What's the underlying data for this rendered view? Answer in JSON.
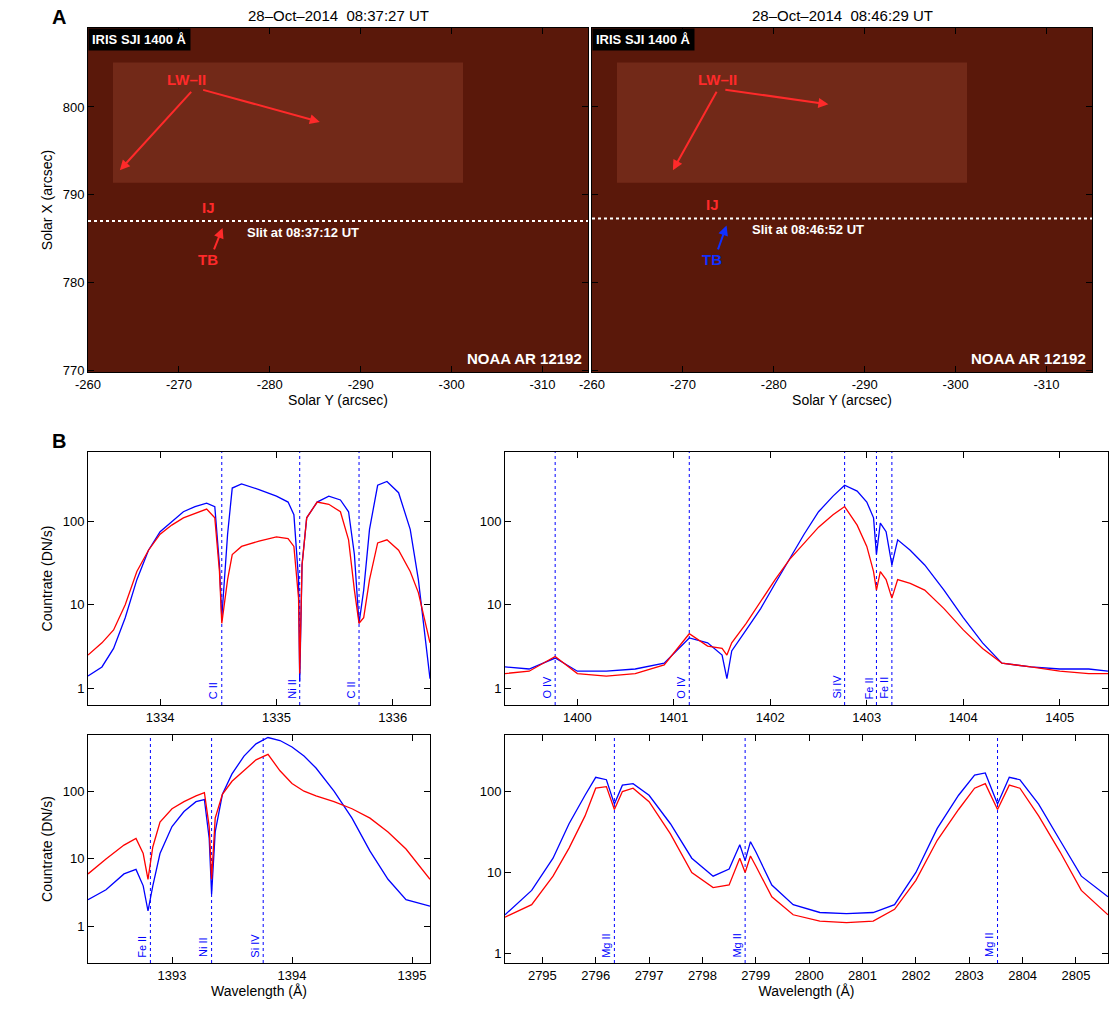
{
  "chart_data": [
    {
      "type": "image",
      "panel": "A",
      "title": "28–Oct–2014  08:37:27 UT",
      "label": "IRIS SJI 1400 Å",
      "region": "NOAA AR 12192",
      "xlabel": "Solar Y (arcsec)",
      "ylabel": "Solar X (arcsec)",
      "xlim": [
        -260,
        -315
      ],
      "ylim": [
        769.8,
        809.0
      ],
      "xticks": [
        -260,
        -270,
        -280,
        -290,
        -300,
        -310
      ],
      "yticks": [
        770,
        780,
        790,
        800
      ],
      "slit": {
        "text": "Slit at 08:37:12 UT",
        "x": [
          -260,
          -315
        ],
        "y": [
          787.0,
          787.0
        ],
        "text_x": -283.7,
        "text_y": 785.7,
        "color": "#ffffff",
        "line_style": "dotted"
      },
      "annotations": [
        {
          "text": "LW–II",
          "x": -270.8,
          "y": 803.1,
          "color": "#ff2a2a",
          "arrows": [
            [
              -271.5,
              801.9,
              -263.5,
              792.8
            ],
            [
              -272.5,
              802.0,
              -285.5,
              798.3
            ]
          ]
        },
        {
          "text": "IJ",
          "x": -273.2,
          "y": 788.6,
          "color": "#ff2a2a"
        },
        {
          "text": "TB",
          "x": -273.2,
          "y": 782.6,
          "color": "#ff2a2a",
          "arrows": [
            [
              -273.8,
              783.6,
              -274.8,
              786.2
            ]
          ]
        }
      ]
    },
    {
      "type": "image",
      "title": "28–Oct–2014  08:46:29 UT",
      "label": "IRIS SJI 1400 Å",
      "region": "NOAA AR 12192",
      "xlabel": "Solar Y (arcsec)",
      "tick_labels": "x",
      "xlim": [
        -260,
        -315
      ],
      "ylim": [
        769.8,
        809.0
      ],
      "xticks": [
        -260,
        -270,
        -280,
        -290,
        -300,
        -310
      ],
      "yticks": [
        770,
        780,
        790,
        800
      ],
      "slit": {
        "text": "Slit at 08:46:52 UT",
        "x": [
          -260,
          -315
        ],
        "y": [
          787.3,
          787.3
        ],
        "text_x": -283.8,
        "text_y": 786.0,
        "color": "#ffffff",
        "line_style": "dotted"
      },
      "annotations": [
        {
          "text": "LW–II",
          "x": -273.8,
          "y": 803.1,
          "color": "#ff2a2a",
          "arrows": [
            [
              -273.8,
              801.9,
              -268.9,
              792.8
            ],
            [
              -274.5,
              802.0,
              -286.0,
              800.3
            ]
          ]
        },
        {
          "text": "IJ",
          "x": -273.2,
          "y": 788.9,
          "color": "#ff2a2a"
        },
        {
          "text": "TB",
          "x": -273.2,
          "y": 782.6,
          "color": "#1030ff",
          "arrows": [
            [
              -273.8,
              783.6,
              -274.8,
              786.5
            ]
          ]
        }
      ]
    },
    {
      "type": "line",
      "panel": "B",
      "log": "y",
      "ylabel": "Countrate (DN/s)",
      "xlim": [
        1333.38,
        1336.32
      ],
      "ylim": [
        0.63,
        676
      ],
      "xticks": [
        1334,
        1335,
        1336
      ],
      "yticks": [
        1,
        10,
        100
      ],
      "x": [
        1333.38,
        1333.5,
        1333.6,
        1333.7,
        1333.8,
        1333.9,
        1334.0,
        1334.1,
        1334.2,
        1334.3,
        1334.4,
        1334.47,
        1334.51,
        1334.53,
        1334.55,
        1334.58,
        1334.62,
        1334.7,
        1334.85,
        1335.0,
        1335.1,
        1335.15,
        1335.19,
        1335.2,
        1335.22,
        1335.26,
        1335.35,
        1335.45,
        1335.55,
        1335.62,
        1335.67,
        1335.71,
        1335.75,
        1335.8,
        1335.87,
        1335.95,
        1336.05,
        1336.15,
        1336.22,
        1336.28,
        1336.32
      ],
      "series": [
        {
          "color": "#0000ff",
          "values": [
            1.4,
            1.8,
            3,
            7,
            20,
            45,
            75,
            100,
            130,
            150,
            165,
            150,
            30,
            7,
            20,
            70,
            250,
            280,
            240,
            200,
            170,
            120,
            20,
            1.2,
            30,
            110,
            170,
            200,
            180,
            130,
            40,
            6,
            15,
            80,
            270,
            300,
            220,
            80,
            20,
            4,
            1.3
          ]
        },
        {
          "color": "#ff0000",
          "values": [
            2.5,
            3.5,
            5,
            10,
            25,
            45,
            70,
            90,
            110,
            125,
            140,
            110,
            25,
            6,
            10,
            20,
            40,
            50,
            58,
            65,
            62,
            50,
            12,
            1.5,
            30,
            110,
            170,
            160,
            130,
            60,
            15,
            6,
            7,
            20,
            55,
            60,
            45,
            25,
            14,
            6,
            3.5
          ]
        }
      ],
      "lines": {
        "color": "#0000ff",
        "line_style": "dotted",
        "items": [
          {
            "x": 1334.53,
            "label": "C II"
          },
          {
            "x": 1335.2,
            "label": "Ni II"
          },
          {
            "x": 1335.71,
            "label": "C II"
          }
        ]
      }
    },
    {
      "type": "line",
      "log": "y",
      "xlim": [
        1399.25,
        1405.5
      ],
      "ylim": [
        0.63,
        676
      ],
      "xticks": [
        1400,
        1401,
        1402,
        1403,
        1404,
        1405
      ],
      "yticks": [
        1,
        10,
        100
      ],
      "x": [
        1399.25,
        1399.5,
        1399.77,
        1400.0,
        1400.3,
        1400.6,
        1400.9,
        1401.16,
        1401.35,
        1401.5,
        1401.55,
        1401.6,
        1401.75,
        1401.9,
        1402.05,
        1402.2,
        1402.35,
        1402.5,
        1402.65,
        1402.77,
        1402.9,
        1403.0,
        1403.07,
        1403.1,
        1403.14,
        1403.2,
        1403.26,
        1403.32,
        1403.45,
        1403.6,
        1403.8,
        1404.0,
        1404.2,
        1404.4,
        1404.7,
        1405.0,
        1405.3,
        1405.5
      ],
      "series": [
        {
          "color": "#0000ff",
          "values": [
            1.8,
            1.7,
            2.3,
            1.6,
            1.6,
            1.7,
            2.0,
            4.0,
            3.5,
            2.5,
            1.3,
            2.8,
            5,
            9,
            18,
            35,
            70,
            130,
            200,
            270,
            230,
            170,
            110,
            40,
            95,
            75,
            30,
            60,
            45,
            30,
            15,
            7,
            3.5,
            2.0,
            1.8,
            1.7,
            1.7,
            1.6
          ]
        },
        {
          "color": "#ff0000",
          "values": [
            1.5,
            1.6,
            2.4,
            1.5,
            1.4,
            1.5,
            1.9,
            4.5,
            3.2,
            3.0,
            2.5,
            3.5,
            6,
            11,
            20,
            35,
            55,
            85,
            120,
            150,
            90,
            50,
            25,
            15,
            25,
            20,
            12,
            20,
            18,
            15,
            9,
            5,
            3,
            2,
            1.8,
            1.6,
            1.5,
            1.5
          ]
        }
      ],
      "lines": {
        "color": "#0000ff",
        "line_style": "dotted",
        "items": [
          {
            "x": 1399.77,
            "label": "O IV"
          },
          {
            "x": 1401.16,
            "label": "O IV"
          },
          {
            "x": 1402.77,
            "label": "Si IV"
          },
          {
            "x": 1403.1,
            "label": "Fe II"
          },
          {
            "x": 1403.26,
            "label": "Fe II"
          }
        ]
      }
    },
    {
      "type": "line",
      "log": "y",
      "xlabel": "Wavelength (Å)",
      "ylabel": "Countrate (DN/s)",
      "xlim": [
        1392.3,
        1395.15
      ],
      "ylim": [
        0.29,
        676
      ],
      "xticks": [
        1393,
        1394,
        1395
      ],
      "yticks": [
        1,
        10,
        100
      ],
      "x": [
        1392.3,
        1392.45,
        1392.6,
        1392.7,
        1392.76,
        1392.8,
        1392.84,
        1392.9,
        1393.0,
        1393.1,
        1393.2,
        1393.27,
        1393.31,
        1393.33,
        1393.36,
        1393.42,
        1393.5,
        1393.6,
        1393.7,
        1393.8,
        1393.9,
        1394.0,
        1394.1,
        1394.2,
        1394.35,
        1394.5,
        1394.65,
        1394.8,
        1394.95,
        1395.15
      ],
      "series": [
        {
          "color": "#0000ff",
          "values": [
            2.5,
            3.5,
            6,
            7,
            4,
            1.7,
            4,
            12,
            30,
            50,
            70,
            75,
            20,
            3,
            25,
            90,
            180,
            330,
            500,
            620,
            560,
            450,
            330,
            220,
            100,
            40,
            13,
            5,
            2.5,
            2
          ]
        },
        {
          "color": "#ff0000",
          "values": [
            6,
            10,
            16,
            20,
            12,
            5,
            15,
            35,
            55,
            70,
            85,
            95,
            30,
            5,
            40,
            90,
            140,
            200,
            290,
            350,
            200,
            130,
            100,
            85,
            70,
            55,
            40,
            25,
            14,
            5
          ]
        }
      ],
      "lines": {
        "color": "#0000ff",
        "line_style": "dotted",
        "items": [
          {
            "x": 1392.82,
            "label": "Fe II"
          },
          {
            "x": 1393.33,
            "label": "Ni II"
          },
          {
            "x": 1393.76,
            "label": "Si IV"
          }
        ]
      }
    },
    {
      "type": "line",
      "log": "y",
      "xlabel": "Wavelength (Å)",
      "xlim": [
        2794.3,
        2805.6
      ],
      "ylim": [
        0.76,
        500
      ],
      "xticks": [
        2795,
        2796,
        2797,
        2798,
        2799,
        2800,
        2801,
        2802,
        2803,
        2804,
        2805
      ],
      "yticks": [
        1,
        10,
        100
      ],
      "x": [
        2794.3,
        2794.8,
        2795.2,
        2795.5,
        2795.8,
        2796.0,
        2796.2,
        2796.35,
        2796.5,
        2796.7,
        2797.0,
        2797.4,
        2797.8,
        2798.2,
        2798.5,
        2798.7,
        2798.8,
        2798.9,
        2799.0,
        2799.3,
        2799.7,
        2800.2,
        2800.7,
        2801.2,
        2801.6,
        2802.0,
        2802.4,
        2802.8,
        2803.1,
        2803.3,
        2803.53,
        2803.75,
        2803.95,
        2804.3,
        2804.7,
        2805.1,
        2805.6
      ],
      "series": [
        {
          "color": "#0000ff",
          "values": [
            3,
            6,
            15,
            40,
            90,
            150,
            140,
            70,
            120,
            125,
            90,
            40,
            15,
            9,
            11,
            22,
            14,
            24,
            18,
            7,
            4,
            3.2,
            3.1,
            3.2,
            4,
            10,
            35,
            90,
            160,
            170,
            70,
            150,
            140,
            70,
            25,
            9,
            5
          ]
        },
        {
          "color": "#ff0000",
          "values": [
            2.8,
            4,
            9,
            20,
            50,
            110,
            115,
            60,
            100,
            110,
            75,
            30,
            10,
            6.5,
            7,
            15,
            10,
            16,
            12,
            5,
            3,
            2.5,
            2.4,
            2.5,
            3.5,
            8,
            25,
            60,
            110,
            125,
            60,
            120,
            110,
            50,
            18,
            6,
            3
          ]
        }
      ],
      "lines": {
        "color": "#0000ff",
        "line_style": "dotted",
        "items": [
          {
            "x": 2796.35,
            "label": "Mg II"
          },
          {
            "x": 2798.8,
            "label": "Mg II"
          },
          {
            "x": 2803.53,
            "label": "Mg II"
          }
        ]
      }
    }
  ]
}
